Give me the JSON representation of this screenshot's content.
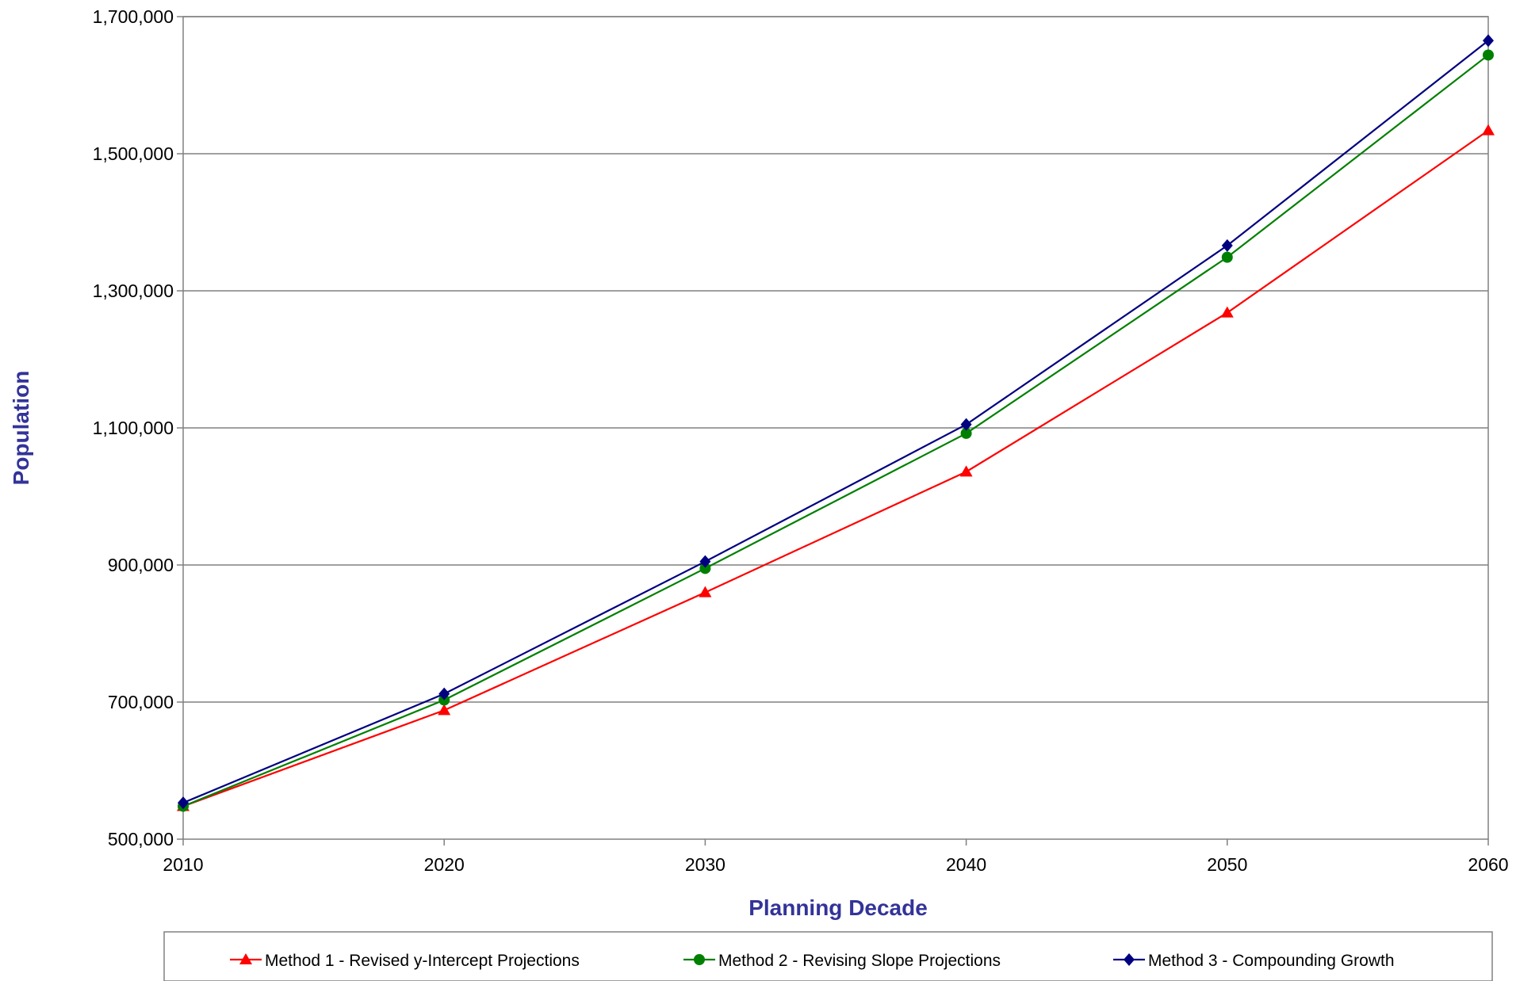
{
  "chart_data": {
    "type": "line",
    "title": "",
    "xlabel": "Planning Decade",
    "ylabel": "Population",
    "x": [
      2010,
      2020,
      2030,
      2040,
      2050,
      2060
    ],
    "x_tick_labels": [
      "2010",
      "2020",
      "2030",
      "2040",
      "2050",
      "2060"
    ],
    "xlim": [
      2010,
      2060
    ],
    "ylim": [
      500000,
      1700000
    ],
    "y_ticks": [
      500000,
      700000,
      900000,
      1100000,
      1300000,
      1500000,
      1700000
    ],
    "y_tick_labels": [
      "500,000",
      "700,000",
      "900,000",
      "1,100,000",
      "1,300,000",
      "1,500,000",
      "1,700,000"
    ],
    "grid": "horizontal",
    "legend_position": "bottom",
    "series": [
      {
        "name": "Method 1 - Revised y-Intercept Projections",
        "color": "#ff0000",
        "marker": "triangle",
        "values": [
          548000,
          688000,
          860000,
          1036000,
          1268000,
          1534000
        ]
      },
      {
        "name": "Method 2 - Revising Slope Projections",
        "color": "#008000",
        "marker": "circle",
        "values": [
          548000,
          703000,
          895000,
          1092000,
          1349000,
          1644000
        ]
      },
      {
        "name": "Method 3 - Compounding Growth",
        "color": "#000080",
        "marker": "diamond",
        "values": [
          553000,
          712000,
          905000,
          1105000,
          1366000,
          1665000
        ]
      }
    ]
  }
}
